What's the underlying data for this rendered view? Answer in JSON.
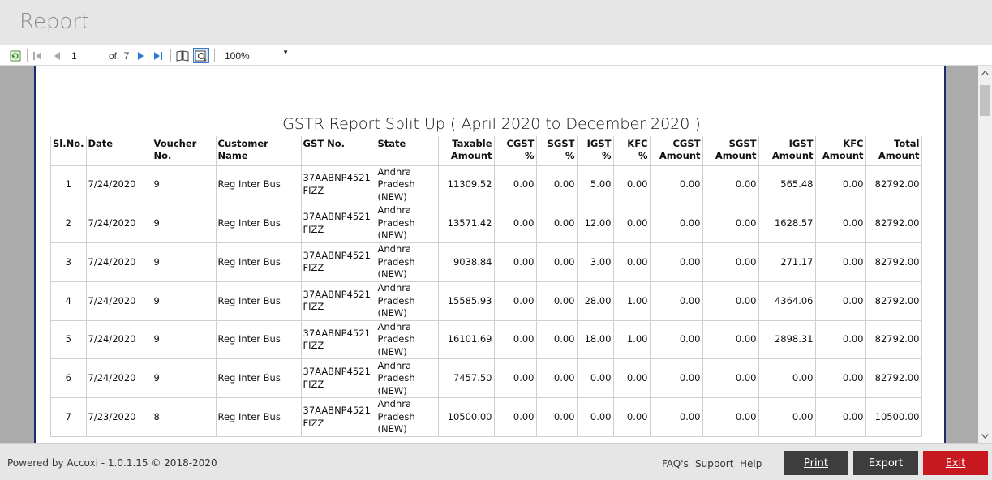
{
  "window": {
    "title": "Report"
  },
  "toolbar": {
    "current_page": "1",
    "of_label": "of",
    "total_pages": "7",
    "zoom": "100%"
  },
  "report": {
    "title": "GSTR Report Split Up ( April 2020 to December 2020 )",
    "columns": [
      "Sl.No.",
      "Date",
      "Voucher No.",
      "Customer Name",
      "GST No.",
      "State",
      "Taxable Amount",
      "CGST  %",
      "SGST %",
      "IGST %",
      "KFC %",
      "CGST Amount",
      "SGST Amount",
      "IGST Amount",
      "KFC Amount",
      "Total Amount"
    ],
    "rows": [
      [
        "1",
        "7/24/2020",
        "9",
        "Reg Inter Bus",
        "37AABNP4521FIZZ",
        "Andhra Pradesh (NEW)",
        "11309.52",
        "0.00",
        "0.00",
        "5.00",
        "0.00",
        "0.00",
        "0.00",
        "565.48",
        "0.00",
        "82792.00"
      ],
      [
        "2",
        "7/24/2020",
        "9",
        "Reg Inter Bus",
        "37AABNP4521FIZZ",
        "Andhra Pradesh (NEW)",
        "13571.42",
        "0.00",
        "0.00",
        "12.00",
        "0.00",
        "0.00",
        "0.00",
        "1628.57",
        "0.00",
        "82792.00"
      ],
      [
        "3",
        "7/24/2020",
        "9",
        "Reg Inter Bus",
        "37AABNP4521FIZZ",
        "Andhra Pradesh (NEW)",
        "9038.84",
        "0.00",
        "0.00",
        "3.00",
        "0.00",
        "0.00",
        "0.00",
        "271.17",
        "0.00",
        "82792.00"
      ],
      [
        "4",
        "7/24/2020",
        "9",
        "Reg Inter Bus",
        "37AABNP4521FIZZ",
        "Andhra Pradesh (NEW)",
        "15585.93",
        "0.00",
        "0.00",
        "28.00",
        "1.00",
        "0.00",
        "0.00",
        "4364.06",
        "0.00",
        "82792.00"
      ],
      [
        "5",
        "7/24/2020",
        "9",
        "Reg Inter Bus",
        "37AABNP4521FIZZ",
        "Andhra Pradesh (NEW)",
        "16101.69",
        "0.00",
        "0.00",
        "18.00",
        "1.00",
        "0.00",
        "0.00",
        "2898.31",
        "0.00",
        "82792.00"
      ],
      [
        "6",
        "7/24/2020",
        "9",
        "Reg Inter Bus",
        "37AABNP4521FIZZ",
        "Andhra Pradesh (NEW)",
        "7457.50",
        "0.00",
        "0.00",
        "0.00",
        "0.00",
        "0.00",
        "0.00",
        "0.00",
        "0.00",
        "82792.00"
      ],
      [
        "7",
        "7/23/2020",
        "8",
        "Reg Inter Bus",
        "37AABNP4521FIZZ",
        "Andhra Pradesh (NEW)",
        "10500.00",
        "0.00",
        "0.00",
        "0.00",
        "0.00",
        "0.00",
        "0.00",
        "0.00",
        "0.00",
        "10500.00"
      ]
    ]
  },
  "footer": {
    "powered_by": "Powered by Accoxi - 1.0.1.15 © 2018-2020",
    "faq": "FAQ's",
    "support": "Support",
    "help": "Help",
    "print": "Print",
    "export": "Export",
    "exit": "Exit"
  },
  "colors": {
    "exit_button": "#c8181f",
    "dark_button": "#3d3d3d",
    "page_border": "#1f2a6b"
  },
  "icons": [
    "refresh-icon",
    "first-page-icon",
    "prev-page-icon",
    "next-page-icon",
    "last-page-icon",
    "print-layout-icon",
    "page-setup-icon",
    "dropdown-caret-icon",
    "scroll-up-icon",
    "scroll-down-icon"
  ]
}
